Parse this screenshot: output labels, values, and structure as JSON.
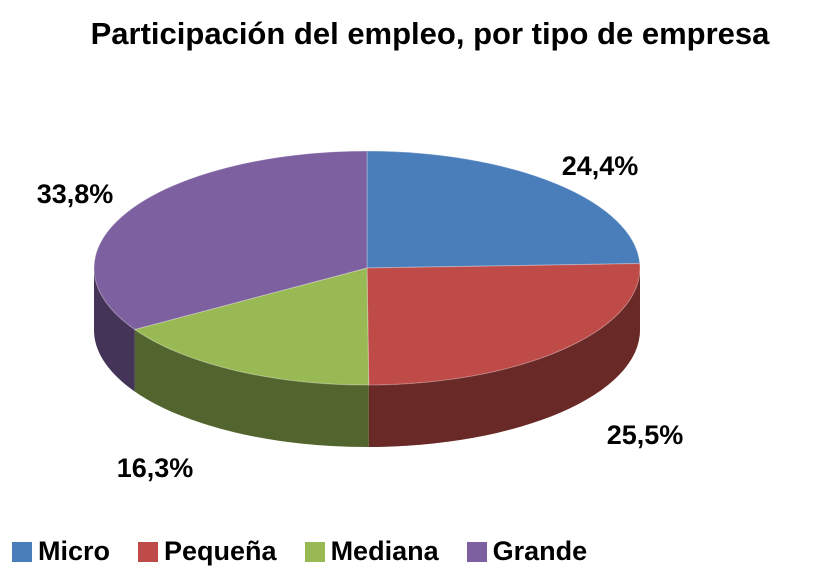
{
  "chart_data": {
    "type": "pie",
    "title": "Participación del empleo, por tipo de empresa",
    "categories": [
      "Micro",
      "Pequeña",
      "Mediana",
      "Grande"
    ],
    "values": [
      24.4,
      25.5,
      16.3,
      33.8
    ],
    "value_labels": [
      "24,4%",
      "25,5%",
      "16,3%",
      "33,8%"
    ],
    "colors": [
      "#4a7ebb",
      "#be4b48",
      "#98b954",
      "#7d60a0"
    ],
    "legend": "bottom"
  }
}
